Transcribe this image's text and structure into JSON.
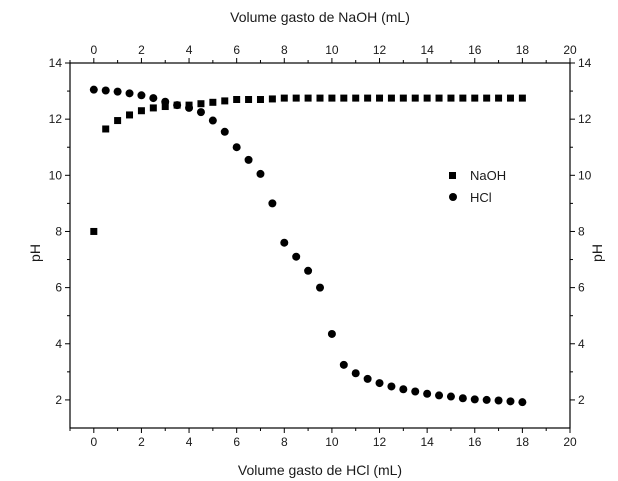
{
  "chart_data": {
    "type": "scatter",
    "title": "",
    "xlabel_bottom": "Volume gasto de HCl (mL)",
    "xlabel_top": "Volume gasto de NaOH (mL)",
    "ylabel_left": "pH",
    "ylabel_right": "pH",
    "xlim": [
      -1,
      20
    ],
    "ylim": [
      1,
      14
    ],
    "xticks": [
      0,
      2,
      4,
      6,
      8,
      10,
      12,
      14,
      16,
      18,
      20
    ],
    "yticks": [
      2,
      4,
      6,
      8,
      10,
      12,
      14
    ],
    "grid": false,
    "legend_position": "center-right",
    "series": [
      {
        "name": "NaOH",
        "marker": "square",
        "axis": "top",
        "color": "#000000",
        "x": [
          0,
          0.5,
          1,
          1.5,
          2,
          2.5,
          3,
          3.5,
          4,
          4.5,
          5,
          5.5,
          6,
          6.5,
          7,
          7.5,
          8,
          8.5,
          9,
          9.5,
          10,
          10.5,
          11,
          11.5,
          12,
          12.5,
          13,
          13.5,
          14,
          14.5,
          15,
          15.5,
          16,
          16.5,
          17,
          17.5,
          18
        ],
        "y": [
          8.0,
          11.65,
          11.95,
          12.15,
          12.3,
          12.4,
          12.45,
          12.5,
          12.5,
          12.55,
          12.6,
          12.65,
          12.7,
          12.7,
          12.7,
          12.72,
          12.75,
          12.75,
          12.75,
          12.75,
          12.75,
          12.75,
          12.75,
          12.75,
          12.75,
          12.75,
          12.75,
          12.75,
          12.75,
          12.75,
          12.75,
          12.75,
          12.75,
          12.75,
          12.75,
          12.75,
          12.75
        ]
      },
      {
        "name": "HCl",
        "marker": "circle",
        "axis": "bottom",
        "color": "#000000",
        "x": [
          0,
          0.5,
          1,
          1.5,
          2,
          2.5,
          3,
          3.5,
          4,
          4.5,
          5,
          5.5,
          6,
          6.5,
          7,
          7.5,
          8,
          8.5,
          9,
          9.5,
          10,
          10.5,
          11,
          11.5,
          12,
          12.5,
          13,
          13.5,
          14,
          14.5,
          15,
          15.5,
          16,
          16.5,
          17,
          17.5,
          18
        ],
        "y": [
          13.05,
          13.02,
          12.98,
          12.92,
          12.85,
          12.75,
          12.62,
          12.5,
          12.4,
          12.25,
          11.95,
          11.55,
          11.0,
          10.55,
          10.05,
          9.0,
          7.6,
          7.1,
          6.6,
          6.0,
          4.35,
          3.25,
          2.95,
          2.75,
          2.6,
          2.48,
          2.38,
          2.3,
          2.22,
          2.16,
          2.12,
          2.06,
          2.02,
          2.0,
          1.98,
          1.95,
          1.92
        ]
      }
    ]
  }
}
